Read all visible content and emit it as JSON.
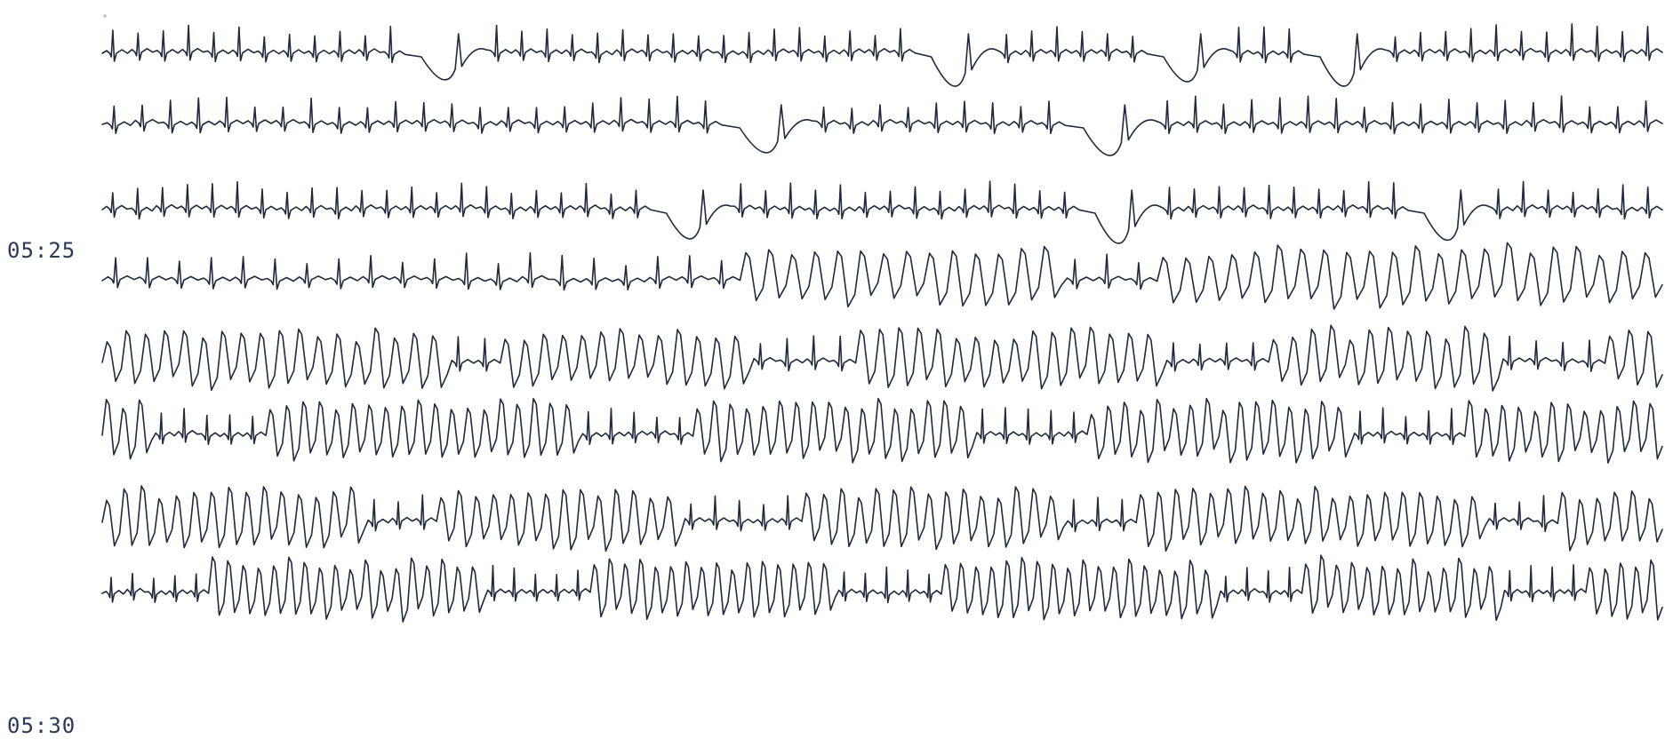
{
  "timestamps": {
    "first": "05:25",
    "second": "05:30"
  },
  "colors": {
    "trace": "#1f2a3d",
    "label": "#2a3a55",
    "paper": "#ffffff"
  },
  "strips": [
    {
      "segments": [
        {
          "rhythm": "narrow",
          "count": 12
        },
        {
          "rhythm": "dip",
          "count": 1
        },
        {
          "rhythm": "narrow",
          "count": 17
        },
        {
          "rhythm": "dip",
          "count": 1
        },
        {
          "rhythm": "narrow",
          "count": 6
        },
        {
          "rhythm": "dip",
          "count": 1
        },
        {
          "rhythm": "narrow",
          "count": 3
        },
        {
          "rhythm": "dip",
          "count": 1
        },
        {
          "rhythm": "narrow",
          "count": 11
        }
      ]
    },
    {
      "segments": [
        {
          "rhythm": "narrow",
          "count": 22
        },
        {
          "rhythm": "dip",
          "count": 1
        },
        {
          "rhythm": "narrow",
          "count": 9
        },
        {
          "rhythm": "dip",
          "count": 1
        },
        {
          "rhythm": "narrow",
          "count": 18
        }
      ]
    },
    {
      "segments": [
        {
          "rhythm": "narrow",
          "count": 22
        },
        {
          "rhythm": "dip",
          "count": 1
        },
        {
          "rhythm": "narrow",
          "count": 14
        },
        {
          "rhythm": "dip",
          "count": 1
        },
        {
          "rhythm": "narrow",
          "count": 10
        },
        {
          "rhythm": "dip",
          "count": 1
        },
        {
          "rhythm": "narrow",
          "count": 7
        }
      ]
    },
    {
      "segments": [
        {
          "rhythm": "narrow",
          "count": 20
        },
        {
          "rhythm": "wide",
          "count": 14
        },
        {
          "rhythm": "narrow",
          "count": 3
        },
        {
          "rhythm": "wide",
          "count": 22
        }
      ]
    },
    {
      "segments": [
        {
          "rhythm": "wide",
          "count": 18
        },
        {
          "rhythm": "narrow",
          "count": 2
        },
        {
          "rhythm": "wide",
          "count": 13
        },
        {
          "rhythm": "narrow",
          "count": 4
        },
        {
          "rhythm": "wide",
          "count": 16
        },
        {
          "rhythm": "narrow",
          "count": 4
        },
        {
          "rhythm": "wide",
          "count": 12
        },
        {
          "rhythm": "narrow",
          "count": 4
        },
        {
          "rhythm": "wide",
          "count": 3
        }
      ]
    },
    {
      "segments": [
        {
          "rhythm": "wide",
          "count": 3
        },
        {
          "rhythm": "narrow",
          "count": 5
        },
        {
          "rhythm": "wide",
          "count": 19
        },
        {
          "rhythm": "narrow",
          "count": 5
        },
        {
          "rhythm": "wide",
          "count": 17
        },
        {
          "rhythm": "narrow",
          "count": 5
        },
        {
          "rhythm": "wide",
          "count": 16
        },
        {
          "rhythm": "narrow",
          "count": 5
        },
        {
          "rhythm": "wide",
          "count": 12
        }
      ]
    },
    {
      "segments": [
        {
          "rhythm": "wide",
          "count": 15
        },
        {
          "rhythm": "narrow",
          "count": 3
        },
        {
          "rhythm": "wide",
          "count": 14
        },
        {
          "rhythm": "narrow",
          "count": 5
        },
        {
          "rhythm": "wide",
          "count": 15
        },
        {
          "rhythm": "narrow",
          "count": 3
        },
        {
          "rhythm": "wide",
          "count": 20
        },
        {
          "rhythm": "narrow",
          "count": 3
        },
        {
          "rhythm": "wide",
          "count": 6
        }
      ]
    },
    {
      "segments": [
        {
          "rhythm": "narrow",
          "count": 5
        },
        {
          "rhythm": "wide",
          "count": 18
        },
        {
          "rhythm": "narrow",
          "count": 5
        },
        {
          "rhythm": "wide",
          "count": 16
        },
        {
          "rhythm": "narrow",
          "count": 5
        },
        {
          "rhythm": "wide",
          "count": 18
        },
        {
          "rhythm": "narrow",
          "count": 4
        },
        {
          "rhythm": "wide",
          "count": 13
        },
        {
          "rhythm": "narrow",
          "count": 4
        },
        {
          "rhythm": "wide",
          "count": 5
        }
      ]
    }
  ]
}
